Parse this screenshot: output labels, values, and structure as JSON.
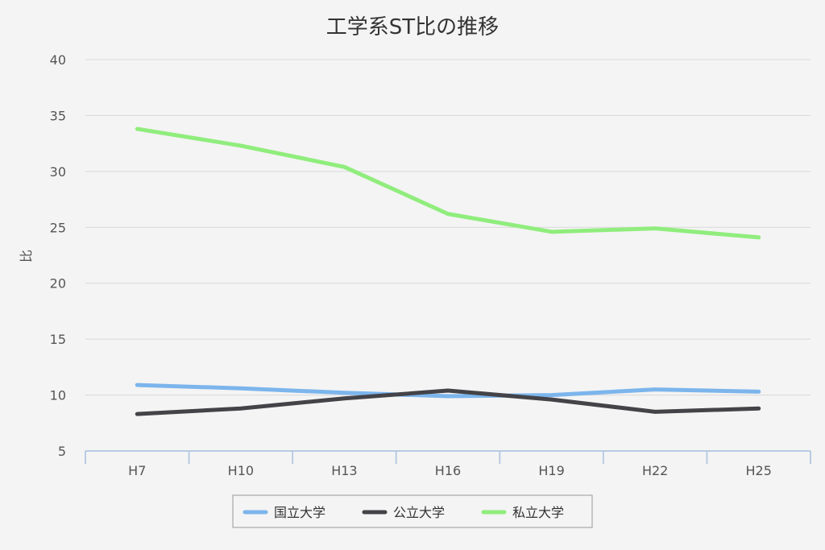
{
  "chart_data": {
    "type": "line",
    "title": "工学系ST比の推移",
    "xlabel": "",
    "ylabel": "比",
    "categories": [
      "H7",
      "H10",
      "H13",
      "H16",
      "H19",
      "H22",
      "H25"
    ],
    "ylim": [
      5,
      40
    ],
    "yticks": [
      5,
      10,
      15,
      20,
      25,
      30,
      35,
      40
    ],
    "grid": true,
    "legend_position": "bottom",
    "series": [
      {
        "name": "国立大学",
        "color": "#7cb5ec",
        "values": [
          10.9,
          10.6,
          10.2,
          9.9,
          10.0,
          10.5,
          10.3
        ]
      },
      {
        "name": "公立大学",
        "color": "#434348",
        "values": [
          8.3,
          8.8,
          9.7,
          10.4,
          9.6,
          8.5,
          8.8
        ]
      },
      {
        "name": "私立大学",
        "color": "#90ed7d",
        "values": [
          33.8,
          32.3,
          30.4,
          26.2,
          24.6,
          24.9,
          24.1
        ]
      }
    ]
  }
}
